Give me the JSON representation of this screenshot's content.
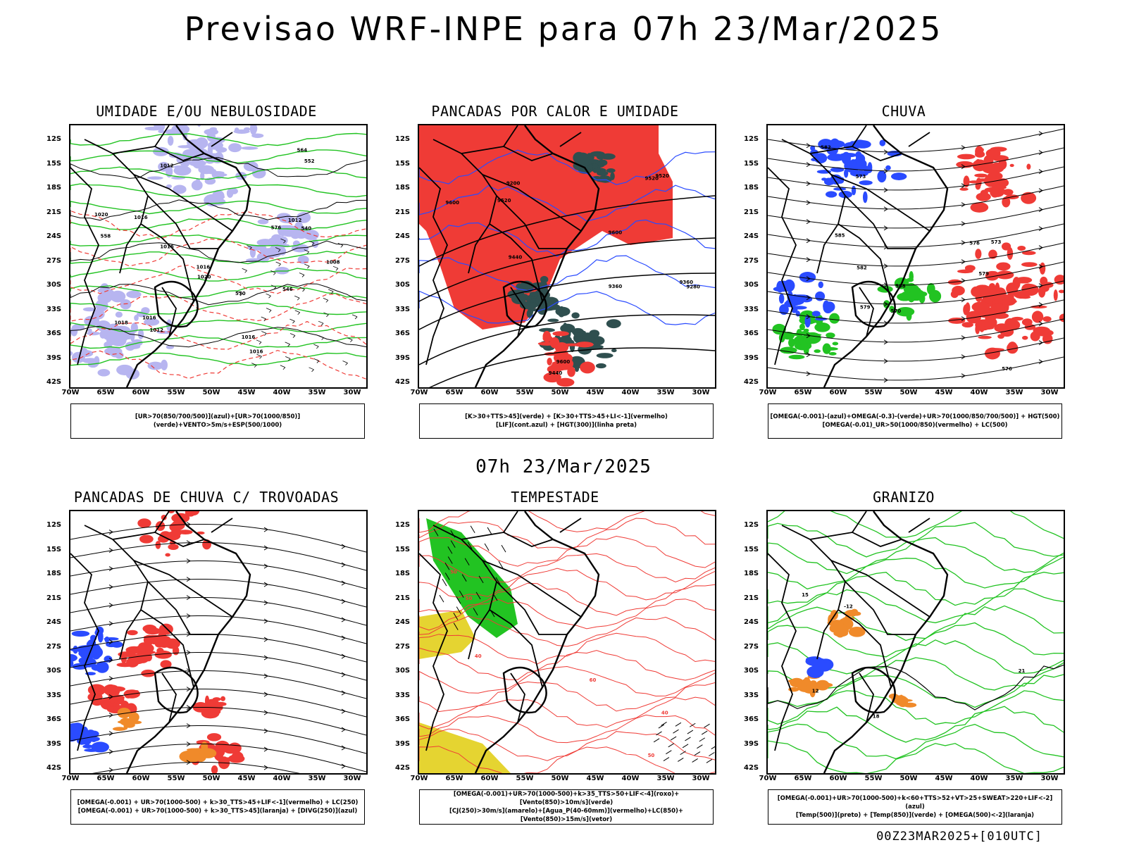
{
  "header": {
    "title": "Previsao WRF-INPE  para 07h 23/Mar/2025",
    "mid_date": "07h 23/Mar/2025",
    "footer": "00Z23MAR2025+[010UTC]"
  },
  "axes": {
    "lat_labels": [
      "12S",
      "15S",
      "18S",
      "21S",
      "24S",
      "27S",
      "30S",
      "33S",
      "36S",
      "39S",
      "42S"
    ],
    "lon_labels": [
      "70W",
      "65W",
      "60W",
      "55W",
      "50W",
      "45W",
      "40W",
      "35W",
      "30W"
    ]
  },
  "colors": {
    "blue": "#2a4bff",
    "green": "#22c322",
    "red": "#ef3b36",
    "lavender": "#b7b5f0",
    "darkteal": "#2f4f4f",
    "orange": "#f08a2a",
    "yellow": "#e5d431",
    "black": "#000000"
  },
  "panels": [
    {
      "id": "umidade",
      "title": "UMIDADE E/OU NEBULOSIDADE",
      "legend": [
        "[UR>70(850/700/500)](azul)+[UR>70(1000/850)](verde)+VENTO>5m/s+ESP(500/1000)"
      ],
      "contour_labels": [
        "1016",
        "1012",
        "1016",
        "1016",
        "1012",
        "1016",
        "1008",
        "1016",
        "1020",
        "1012",
        "1018",
        "1020",
        "1016",
        "570",
        "576",
        "564",
        "558",
        "552",
        "546",
        "540"
      ]
    },
    {
      "id": "pancadas_calor",
      "title": "PANCADAS POR CALOR E UMIDADE",
      "legend": [
        "[K>30+TTS>45](verde) + [K>30+TTS>45+LI<-1](vermelho)",
        "[LIF](cont.azul) + [HGT(300)](linha preta)"
      ],
      "contour_labels": [
        "9600",
        "9520",
        "9600",
        "9600",
        "9520",
        "9440",
        "9360",
        "9440",
        "9520",
        "9280",
        "9360",
        "9200"
      ]
    },
    {
      "id": "chuva",
      "title": "CHUVA",
      "legend": [
        "[OMEGA(-0.001)-(azul)+OMEGA(-0.3)-(verde)+UR>70(1000/850/700/500)] + HGT(500)",
        "[OMEGA(-0.01)_UR>50(1000/850)(vermelho) + LC(500)"
      ],
      "contour_labels": [
        "588",
        "585",
        "582",
        "579",
        "576",
        "573",
        "570",
        "582",
        "579",
        "576",
        "573"
      ]
    },
    {
      "id": "pancadas_trovoadas",
      "title": "PANCADAS DE CHUVA C/ TROVOADAS",
      "legend": [
        "[OMEGA(-0.001) + UR>70(1000-500) + k>30_TTS>45+LIF<-1](vermelho) + LC(250)",
        "[OMEGA(-0.001) + UR>70(1000-500) + k>30_TTS>45](laranja) + [DIVG(250)](azul)"
      ],
      "contour_labels": []
    },
    {
      "id": "tempestade",
      "title": "TEMPESTADE",
      "legend": [
        "[OMEGA(-0.001)+UR>70(1000-500)+k>35_TTS>50+LIF<-4](roxo)+[Vento(850)>10m/s](verde)",
        "[CJ(250)>30m/s](amarelo)+[Agua_P(40-60mm)](vermelho)+LC(850)+[Vento(850)>15m/s](vetor)"
      ],
      "contour_labels": [
        "50",
        "40",
        "60",
        "50",
        "40",
        "50"
      ]
    },
    {
      "id": "granizo",
      "title": "GRANIZO",
      "legend": [
        "[OMEGA(-0.001)+UR>70(1000-500)+k<60+TTS>52+VT>25+SWEAT>220+LIF<-2](azul)",
        "[Temp(500)](preto) + [Temp(850)](verde) + [OMEGA(500)<-2](laranja)"
      ],
      "contour_labels": [
        "-12",
        "12",
        "15",
        "18",
        "21"
      ]
    }
  ]
}
